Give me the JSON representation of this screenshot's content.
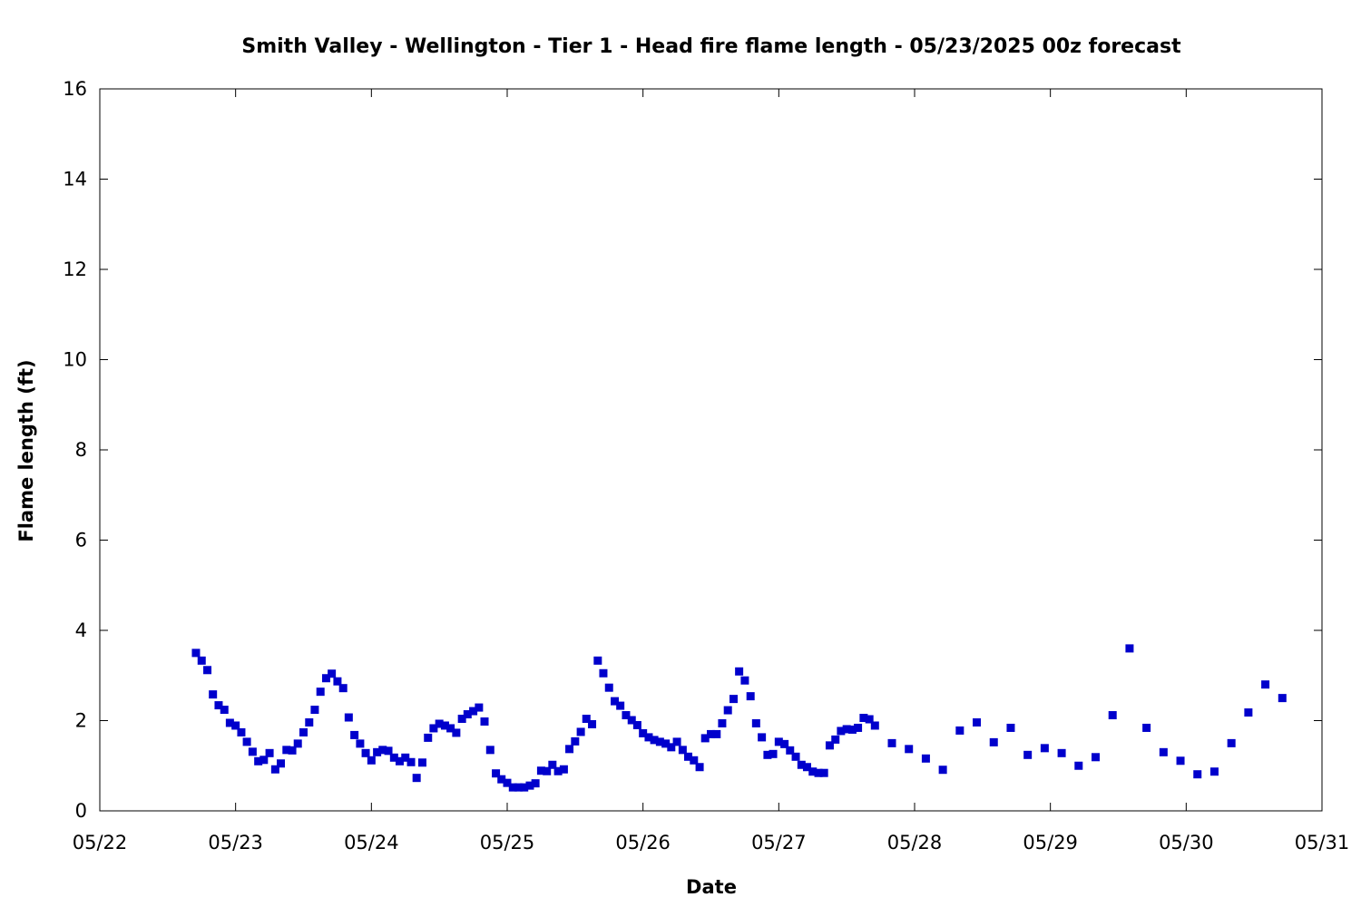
{
  "chart_data": {
    "type": "scatter",
    "title": "Smith Valley - Wellington - Tier 1 - Head fire flame length - 05/23/2025 00z forecast",
    "xlabel": "Date",
    "ylabel": "Flame length (ft)",
    "xlim": [
      "05/22",
      "05/31"
    ],
    "ylim": [
      0,
      16
    ],
    "x_ticks": [
      "05/22",
      "05/23",
      "05/24",
      "05/25",
      "05/26",
      "05/27",
      "05/28",
      "05/29",
      "05/30",
      "05/31"
    ],
    "y_ticks": [
      0,
      2,
      4,
      6,
      8,
      10,
      12,
      14,
      16
    ],
    "grid": false,
    "legend": "none",
    "marker_color": "#0000cc",
    "x_unit": "day of 2025-05",
    "series": [
      {
        "x": [
          22.708,
          22.75,
          22.792,
          22.833,
          22.875,
          22.917,
          22.958,
          23.0,
          23.042,
          23.083,
          23.125,
          23.167,
          23.208,
          23.25,
          23.292,
          23.333,
          23.375,
          23.417,
          23.458,
          23.5,
          23.542,
          23.583,
          23.625,
          23.667,
          23.708,
          23.75,
          23.792,
          23.833,
          23.875,
          23.917,
          23.958,
          24.0,
          24.042,
          24.083,
          24.125,
          24.167,
          24.208,
          24.25,
          24.292,
          24.333,
          24.375,
          24.417,
          24.458,
          24.5,
          24.542,
          24.583,
          24.625,
          24.667,
          24.708,
          24.75,
          24.792,
          24.833,
          24.875,
          24.917,
          24.958,
          25.0,
          25.042,
          25.083,
          25.125,
          25.167,
          25.208,
          25.25,
          25.292,
          25.333,
          25.375,
          25.417,
          25.458,
          25.5,
          25.542,
          25.583,
          25.625,
          25.667,
          25.708,
          25.75,
          25.792,
          25.833,
          25.875,
          25.917,
          25.958,
          26.0,
          26.042,
          26.083,
          26.125,
          26.167,
          26.208,
          26.25,
          26.292,
          26.333,
          26.375,
          26.417,
          26.458,
          26.5,
          26.542,
          26.583,
          26.625,
          26.667,
          26.708,
          26.75,
          26.792,
          26.833,
          26.875,
          26.917,
          26.958,
          27.0,
          27.042,
          27.083,
          27.125,
          27.167,
          27.208,
          27.25,
          27.292,
          27.333,
          27.375,
          27.417,
          27.458,
          27.5,
          27.542,
          27.583,
          27.625,
          27.667,
          27.708,
          27.833,
          27.958,
          28.083,
          28.208,
          28.333,
          28.458,
          28.583,
          28.708,
          28.833,
          28.958,
          29.083,
          29.208,
          29.333,
          29.458,
          29.583,
          29.708,
          29.833,
          29.958,
          30.083,
          30.208,
          30.333,
          30.458,
          30.583,
          30.708
        ],
        "y": [
          3.5,
          3.33,
          3.12,
          2.58,
          2.34,
          2.24,
          1.95,
          1.89,
          1.74,
          1.53,
          1.31,
          1.1,
          1.13,
          1.28,
          0.92,
          1.05,
          1.35,
          1.34,
          1.49,
          1.74,
          1.96,
          2.24,
          2.64,
          2.94,
          3.04,
          2.87,
          2.72,
          2.07,
          1.68,
          1.49,
          1.28,
          1.12,
          1.3,
          1.35,
          1.33,
          1.18,
          1.1,
          1.18,
          1.08,
          0.73,
          1.07,
          1.62,
          1.83,
          1.93,
          1.89,
          1.83,
          1.73,
          2.04,
          2.14,
          2.21,
          2.29,
          1.98,
          1.35,
          0.83,
          0.7,
          0.62,
          0.52,
          0.52,
          0.52,
          0.56,
          0.61,
          0.89,
          0.88,
          1.02,
          0.88,
          0.92,
          1.37,
          1.54,
          1.75,
          2.04,
          1.92,
          3.33,
          3.05,
          2.73,
          2.43,
          2.33,
          2.12,
          2.01,
          1.9,
          1.72,
          1.63,
          1.57,
          1.53,
          1.49,
          1.41,
          1.53,
          1.35,
          1.2,
          1.12,
          0.97,
          1.61,
          1.7,
          1.7,
          1.94,
          2.23,
          2.48,
          3.09,
          2.89,
          2.54,
          1.94,
          1.63,
          1.24,
          1.26,
          1.53,
          1.48,
          1.34,
          1.2,
          1.02,
          0.97,
          0.87,
          0.84,
          0.84,
          1.45,
          1.58,
          1.77,
          1.81,
          1.8,
          1.84,
          2.06,
          2.03,
          1.89,
          1.5,
          1.37,
          1.16,
          0.91,
          1.78,
          1.96,
          1.52,
          1.84,
          1.24,
          1.39,
          1.28,
          1.0,
          1.19,
          2.12,
          3.6,
          1.84,
          1.3,
          1.11,
          0.81,
          0.87,
          1.5,
          2.18,
          2.8,
          2.5
        ]
      }
    ]
  }
}
